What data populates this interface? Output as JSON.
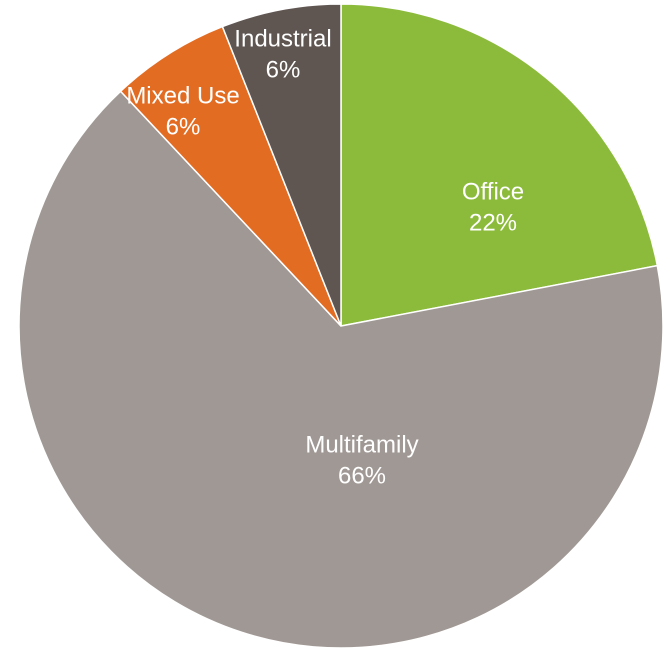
{
  "chart_data": {
    "type": "pie",
    "categories": [
      "Office",
      "Multifamily",
      "Mixed Use",
      "Industrial"
    ],
    "values": [
      22,
      66,
      6,
      6
    ],
    "value_labels": [
      "22%",
      "66%",
      "6%",
      "6%"
    ],
    "colors": [
      "#8cbb3c",
      "#a09894",
      "#e36c23",
      "#5f5652"
    ]
  }
}
